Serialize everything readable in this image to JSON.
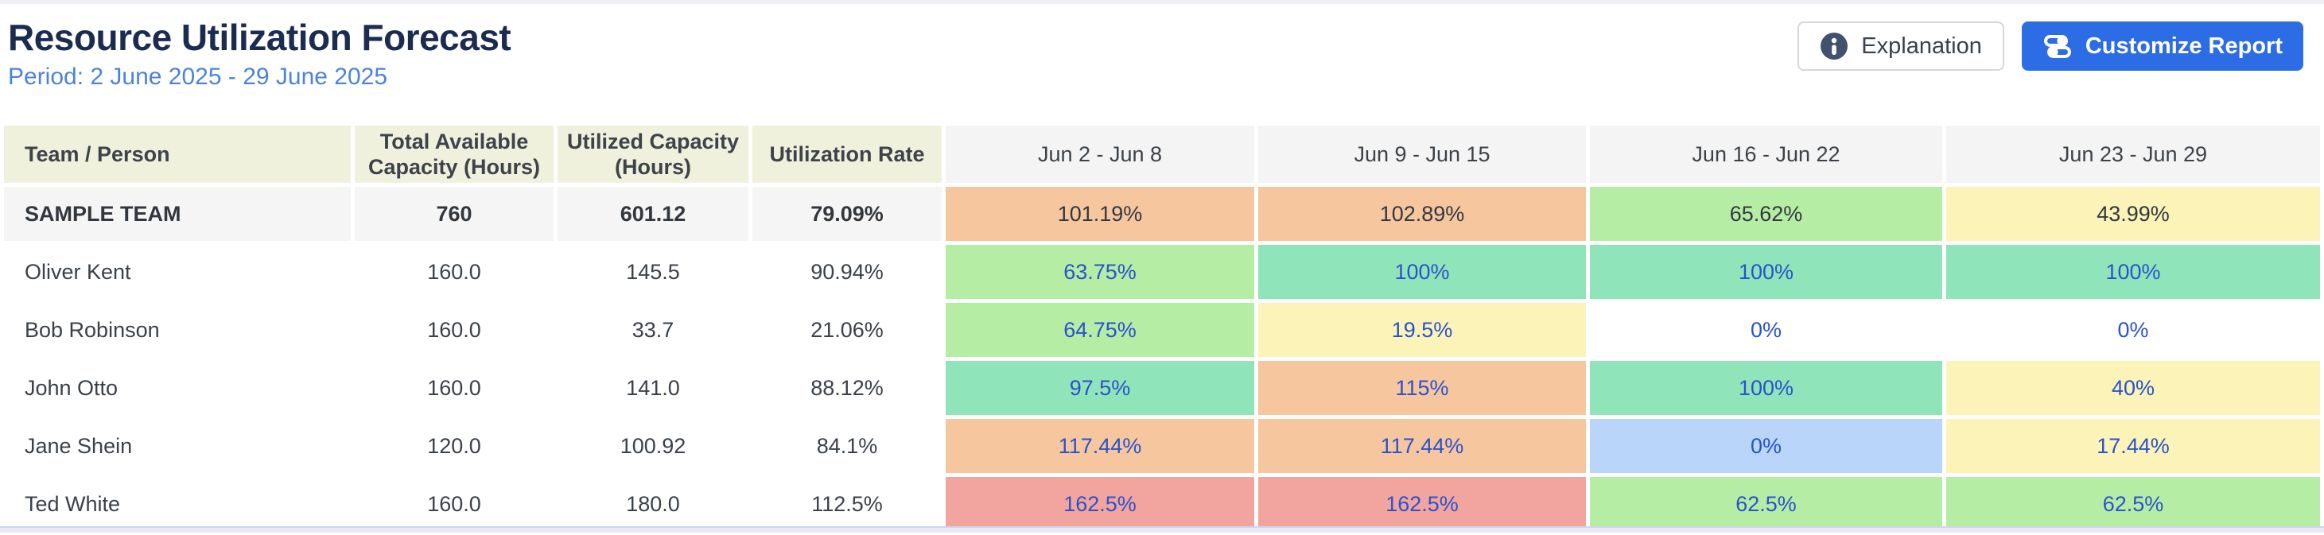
{
  "page": {
    "title": "Resource Utilization Forecast",
    "period": "Period: 2 June 2025 - 29 June 2025"
  },
  "toolbar": {
    "explanation_label": "Explanation",
    "explanation_icon": "info-icon",
    "customize_label": "Customize Report",
    "customize_icon": "sliders-icon"
  },
  "colors": {
    "accent_blue": "#2c6ce4",
    "link_blue": "#2b52cd",
    "title_navy": "#1c2b50",
    "period_blue": "#4d83d6",
    "header_olive_bg": "#f0f1dd",
    "header_gray_bg": "#f4f4f5",
    "team_row_bg": "#f5f5f6",
    "info_icon_fill": "#42526e",
    "cells": {
      "peach": "#f6c69e",
      "green": "#b6eda5",
      "teal": "#90e4ba",
      "yellow": "#fcf3b8",
      "blue": "#b9d5f9",
      "red": "#f2a59f",
      "white": "#ffffff"
    }
  },
  "table": {
    "columns": [
      "Team / Person",
      "Total Available Capacity (Hours)",
      "Utilized Capacity (Hours)",
      "Utilization Rate",
      "Jun 2 - Jun 8",
      "Jun 9 - Jun 15",
      "Jun 16 - Jun 22",
      "Jun 23 - Jun 29"
    ],
    "rows": [
      {
        "type": "team",
        "name": "SAMPLE TEAM",
        "capacity": "760",
        "utilized": "601.12",
        "rate": "79.09%",
        "weeks": [
          {
            "value": "101.19%",
            "color": "peach"
          },
          {
            "value": "102.89%",
            "color": "peach"
          },
          {
            "value": "65.62%",
            "color": "green"
          },
          {
            "value": "43.99%",
            "color": "yellow"
          }
        ]
      },
      {
        "type": "person",
        "name": "Oliver Kent",
        "capacity": "160.0",
        "utilized": "145.5",
        "rate": "90.94%",
        "weeks": [
          {
            "value": "63.75%",
            "color": "green"
          },
          {
            "value": "100%",
            "color": "teal"
          },
          {
            "value": "100%",
            "color": "teal"
          },
          {
            "value": "100%",
            "color": "teal"
          }
        ]
      },
      {
        "type": "person",
        "name": "Bob Robinson",
        "capacity": "160.0",
        "utilized": "33.7",
        "rate": "21.06%",
        "weeks": [
          {
            "value": "64.75%",
            "color": "green"
          },
          {
            "value": "19.5%",
            "color": "yellow"
          },
          {
            "value": "0%",
            "color": "white"
          },
          {
            "value": "0%",
            "color": "white"
          }
        ]
      },
      {
        "type": "person",
        "name": "John Otto",
        "capacity": "160.0",
        "utilized": "141.0",
        "rate": "88.12%",
        "weeks": [
          {
            "value": "97.5%",
            "color": "teal"
          },
          {
            "value": "115%",
            "color": "peach"
          },
          {
            "value": "100%",
            "color": "teal"
          },
          {
            "value": "40%",
            "color": "yellow"
          }
        ]
      },
      {
        "type": "person",
        "name": "Jane Shein",
        "capacity": "120.0",
        "utilized": "100.92",
        "rate": "84.1%",
        "weeks": [
          {
            "value": "117.44%",
            "color": "peach"
          },
          {
            "value": "117.44%",
            "color": "peach"
          },
          {
            "value": "0%",
            "color": "blue"
          },
          {
            "value": "17.44%",
            "color": "yellow"
          }
        ]
      },
      {
        "type": "person",
        "name": "Ted White",
        "capacity": "160.0",
        "utilized": "180.0",
        "rate": "112.5%",
        "weeks": [
          {
            "value": "162.5%",
            "color": "red"
          },
          {
            "value": "162.5%",
            "color": "red"
          },
          {
            "value": "62.5%",
            "color": "green"
          },
          {
            "value": "62.5%",
            "color": "green"
          }
        ]
      }
    ]
  }
}
